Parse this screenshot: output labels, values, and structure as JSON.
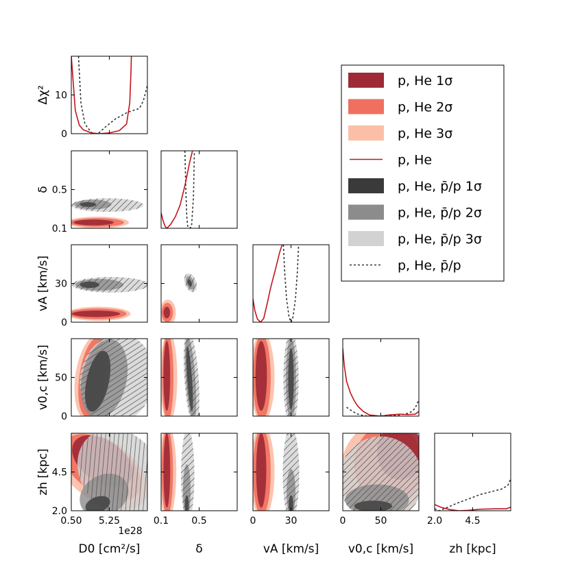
{
  "chart_data": {
    "type": "corner",
    "legend": {
      "placement": "top-right",
      "items": [
        {
          "label": "p, He 1σ",
          "color": "#9e2a36",
          "kind": "fill"
        },
        {
          "label": "p, He 2σ",
          "color": "#f07060",
          "kind": "fill"
        },
        {
          "label": "p, He 3σ",
          "color": "#fbbfa8",
          "kind": "fill"
        },
        {
          "label": "p, He",
          "color": "#c0141c",
          "kind": "line"
        },
        {
          "label": "p, He, p̄/p 1σ",
          "color": "#3a3a3a",
          "kind": "fill"
        },
        {
          "label": "p, He, p̄/p 2σ",
          "color": "#8c8c8c",
          "kind": "fill"
        },
        {
          "label": "p, He, p̄/p 3σ",
          "color": "#d2d2d2",
          "kind": "fill"
        },
        {
          "label": "p, He, p̄/p",
          "color": "#333333",
          "kind": "dashed"
        }
      ]
    },
    "colors": {
      "red_1s": "#9e2a36",
      "red_2s": "#f07060",
      "red_3s": "#fbbfa8",
      "gray_1s": "#3a3a3a",
      "gray_2s": "#8c8c8c",
      "gray_3s": "#d2d2d2",
      "red_line": "#c0141c",
      "gray_line": "#333333"
    },
    "parameters": [
      {
        "key": "D0",
        "label": "D0 [cm²/s]",
        "range": [
          0.5,
          10.0
        ],
        "ticks": [
          0.5,
          5.25
        ],
        "tick_labels": [
          "0.50",
          "5.25"
        ],
        "offset_text": "1e28"
      },
      {
        "key": "delta",
        "label": "δ",
        "range": [
          0.1,
          0.9
        ],
        "ticks": [
          0.1,
          0.5
        ],
        "tick_labels": [
          "0.1",
          "0.5"
        ]
      },
      {
        "key": "vA",
        "label": "vA [km/s]",
        "range": [
          0,
          60
        ],
        "ticks": [
          0,
          30
        ],
        "tick_labels": [
          "0",
          "30"
        ]
      },
      {
        "key": "v0c",
        "label": "v0,c [km/s]",
        "range": [
          0,
          100
        ],
        "ticks": [
          0,
          50
        ],
        "tick_labels": [
          "0",
          "50"
        ]
      },
      {
        "key": "zh",
        "label": "zh [kpc]",
        "range": [
          2.0,
          7.0
        ],
        "ticks": [
          2.0,
          4.5
        ],
        "tick_labels": [
          "2.0",
          "4.5"
        ]
      }
    ],
    "profile_ylabel": "Δχ²",
    "profile_yrange": [
      0,
      20
    ],
    "profile_yticks": [
      0,
      10
    ],
    "profiles": [
      {
        "param": "D0",
        "pHe": {
          "x": [
            0.5,
            1.0,
            1.5,
            2.0,
            3.0,
            4.0,
            5.25,
            6.5,
            7.4,
            7.8,
            7.95,
            8.0
          ],
          "y": [
            20,
            6,
            2.2,
            1.0,
            0.2,
            0.0,
            0.2,
            0.8,
            2.5,
            8,
            16,
            20
          ]
        },
        "pHePbar": {
          "x": [
            1.4,
            1.7,
            2.2,
            3.0,
            3.5,
            4.0,
            4.8,
            6.0,
            7.5,
            9.0,
            9.5,
            10.0
          ],
          "y": [
            20,
            8,
            2.5,
            0.3,
            0.0,
            0.3,
            1.8,
            3.8,
            5.5,
            6.5,
            8.5,
            12.5
          ]
        }
      },
      {
        "param": "delta",
        "pHe": {
          "x": [
            0.1,
            0.12,
            0.14,
            0.16,
            0.2,
            0.25,
            0.3,
            0.35,
            0.4,
            0.43
          ],
          "y": [
            4,
            2.0,
            0.6,
            0.0,
            1.0,
            3.0,
            6.0,
            11,
            17,
            20
          ]
        },
        "pHePbar": {
          "x": [
            0.35,
            0.36,
            0.37,
            0.38,
            0.4,
            0.42,
            0.44,
            0.45
          ],
          "y": [
            20,
            10,
            3,
            0.5,
            0.0,
            0.5,
            8,
            20
          ]
        }
      },
      {
        "param": "vA",
        "pHe": {
          "x": [
            0,
            1.5,
            3.5,
            6,
            8.5,
            11,
            14,
            18,
            21,
            23
          ],
          "y": [
            6,
            3,
            0.8,
            0.0,
            1.0,
            4.5,
            9,
            14,
            18,
            20
          ]
        },
        "pHePbar": {
          "x": [
            24,
            25,
            26.5,
            28.5,
            30,
            31.5,
            33.5,
            35,
            36
          ],
          "y": [
            20,
            13,
            6,
            1.2,
            0.0,
            1.2,
            6,
            13,
            20
          ]
        }
      },
      {
        "param": "v0c",
        "pHe": {
          "x": [
            0,
            2,
            5,
            10,
            15,
            20,
            27,
            35,
            50,
            60,
            75,
            85,
            95,
            100
          ],
          "y": [
            17.5,
            13,
            9,
            6,
            4,
            2.5,
            1.2,
            0.3,
            0.0,
            0.3,
            0.5,
            0.4,
            0.5,
            1.2
          ]
        },
        "pHePbar": {
          "x": [
            5,
            10,
            15,
            20,
            27,
            35,
            50,
            65,
            75,
            85,
            90,
            95,
            100
          ],
          "y": [
            2.3,
            1.6,
            1.0,
            0.5,
            0.15,
            0.0,
            0.05,
            0.1,
            0.3,
            0.7,
            1.1,
            2.0,
            4.2
          ]
        }
      },
      {
        "param": "zh",
        "pHe": {
          "x": [
            2.0,
            2.4,
            3.0,
            3.6,
            4.2,
            5.0,
            6.0,
            6.7,
            7.0
          ],
          "y": [
            1.6,
            0.9,
            0.3,
            0.0,
            0.1,
            0.4,
            0.5,
            0.5,
            0.9
          ]
        },
        "pHePbar": {
          "x": [
            2.0,
            2.3,
            2.8,
            3.5,
            4.2,
            5.0,
            5.8,
            6.4,
            6.8,
            7.0
          ],
          "y": [
            0.5,
            0.0,
            0.8,
            2.0,
            3.0,
            4.2,
            5.0,
            5.6,
            6.5,
            8.2
          ]
        }
      }
    ],
    "contours": [
      {
        "x": "D0",
        "y": "delta",
        "red": [
          {
            "cx": 3.8,
            "cy": 0.16,
            "rx": 3.9,
            "ry": 0.06,
            "rot": 0
          },
          {
            "cx": 3.7,
            "cy": 0.16,
            "rx": 3.4,
            "ry": 0.045,
            "rot": 0
          },
          {
            "cx": 3.3,
            "cy": 0.16,
            "rx": 2.5,
            "ry": 0.03,
            "rot": 0
          }
        ],
        "gray": [
          {
            "cx": 5.0,
            "cy": 0.34,
            "rx": 4.5,
            "ry": 0.07,
            "rot": 0
          },
          {
            "cx": 3.2,
            "cy": 0.345,
            "rx": 2.3,
            "ry": 0.05,
            "rot": 0
          },
          {
            "cx": 2.6,
            "cy": 0.345,
            "rx": 1.0,
            "ry": 0.025,
            "rot": 0
          }
        ]
      },
      {
        "x": "D0",
        "y": "vA",
        "red": [
          {
            "cx": 3.9,
            "cy": 6.5,
            "rx": 4.0,
            "ry": 5.5,
            "rot": 0
          },
          {
            "cx": 3.8,
            "cy": 6.5,
            "rx": 3.6,
            "ry": 4.2,
            "rot": 0
          },
          {
            "cx": 3.6,
            "cy": 6.5,
            "rx": 3.0,
            "ry": 2.5,
            "rot": 0
          }
        ],
        "gray": [
          {
            "cx": 5.4,
            "cy": 29,
            "rx": 4.8,
            "ry": 6.0,
            "rot": 0
          },
          {
            "cx": 4.0,
            "cy": 29,
            "rx": 3.0,
            "ry": 4.5,
            "rot": 0
          },
          {
            "cx": 2.8,
            "cy": 29,
            "rx": 1.2,
            "ry": 2.5,
            "rot": 0
          }
        ]
      },
      {
        "x": "delta",
        "y": "vA",
        "red": [
          {
            "cx": 0.17,
            "cy": 7.5,
            "rx": 0.085,
            "ry": 10,
            "rot": 0
          },
          {
            "cx": 0.165,
            "cy": 7.5,
            "rx": 0.06,
            "ry": 7.5,
            "rot": 0
          },
          {
            "cx": 0.16,
            "cy": 7.5,
            "rx": 0.035,
            "ry": 4.5,
            "rot": 0
          }
        ],
        "gray": [
          {
            "cx": 0.41,
            "cy": 30.5,
            "rx": 0.06,
            "ry": 7.5,
            "rot": -20
          },
          {
            "cx": 0.405,
            "cy": 30.5,
            "rx": 0.04,
            "ry": 5.5,
            "rot": -20
          },
          {
            "cx": 0.4,
            "cy": 30.5,
            "rx": 0.02,
            "ry": 3.0,
            "rot": -20
          }
        ]
      },
      {
        "x": "D0",
        "y": "v0c",
        "red": [
          {
            "cx": 3.2,
            "cy": 50,
            "rx": 2.2,
            "ry": 56,
            "rot": 8
          },
          {
            "cx": 3.2,
            "cy": 50,
            "rx": 1.7,
            "ry": 52,
            "rot": 8
          },
          {
            "cx": 3.4,
            "cy": 45,
            "rx": 1.2,
            "ry": 40,
            "rot": 8
          }
        ],
        "gray": [
          {
            "cx": 6.2,
            "cy": 48,
            "rx": 4.6,
            "ry": 58,
            "rot": 12
          },
          {
            "cx": 4.6,
            "cy": 48,
            "rx": 2.8,
            "ry": 52,
            "rot": 12
          },
          {
            "cx": 3.8,
            "cy": 45,
            "rx": 1.4,
            "ry": 40,
            "rot": 12
          }
        ]
      },
      {
        "x": "delta",
        "y": "v0c",
        "red": [
          {
            "cx": 0.18,
            "cy": 50,
            "rx": 0.09,
            "ry": 58,
            "rot": 0
          },
          {
            "cx": 0.17,
            "cy": 50,
            "rx": 0.06,
            "ry": 55,
            "rot": 0
          },
          {
            "cx": 0.16,
            "cy": 52,
            "rx": 0.035,
            "ry": 45,
            "rot": 0
          }
        ],
        "gray": [
          {
            "cx": 0.42,
            "cy": 48,
            "rx": 0.075,
            "ry": 62,
            "rot": -4
          },
          {
            "cx": 0.41,
            "cy": 48,
            "rx": 0.05,
            "ry": 55,
            "rot": -4
          },
          {
            "cx": 0.4,
            "cy": 48,
            "rx": 0.025,
            "ry": 42,
            "rot": -4
          }
        ]
      },
      {
        "x": "vA",
        "y": "v0c",
        "red": [
          {
            "cx": 7.5,
            "cy": 50,
            "rx": 9.5,
            "ry": 58,
            "rot": 0
          },
          {
            "cx": 7.0,
            "cy": 50,
            "rx": 7.0,
            "ry": 55,
            "rot": 0
          },
          {
            "cx": 6.5,
            "cy": 52,
            "rx": 4.5,
            "ry": 45,
            "rot": 0
          }
        ],
        "gray": [
          {
            "cx": 30,
            "cy": 48,
            "rx": 6.0,
            "ry": 60,
            "rot": 0
          },
          {
            "cx": 30,
            "cy": 48,
            "rx": 4.0,
            "ry": 53,
            "rot": 0
          },
          {
            "cx": 30,
            "cy": 48,
            "rx": 2.2,
            "ry": 40,
            "rot": 0
          }
        ]
      },
      {
        "x": "D0",
        "y": "zh",
        "red": [
          {
            "cx": 4.3,
            "cy": 4.6,
            "rx": 3.8,
            "ry": 3.4,
            "rot": -55
          },
          {
            "cx": 4.3,
            "cy": 4.8,
            "rx": 3.2,
            "ry": 2.9,
            "rot": -55
          },
          {
            "cx": 4.4,
            "cy": 5.2,
            "rx": 2.6,
            "ry": 2.2,
            "rot": -55
          }
        ],
        "gray": [
          {
            "cx": 6.5,
            "cy": 4.5,
            "rx": 4.8,
            "ry": 3.0,
            "rot": -40
          },
          {
            "cx": 4.6,
            "cy": 3.0,
            "rx": 3.2,
            "ry": 1.3,
            "rot": -30
          },
          {
            "cx": 3.8,
            "cy": 2.4,
            "rx": 1.6,
            "ry": 0.5,
            "rot": -20
          }
        ]
      },
      {
        "x": "delta",
        "y": "zh",
        "red": [
          {
            "cx": 0.17,
            "cy": 4.5,
            "rx": 0.09,
            "ry": 3.0,
            "rot": 0
          },
          {
            "cx": 0.165,
            "cy": 4.5,
            "rx": 0.06,
            "ry": 2.8,
            "rot": 0
          },
          {
            "cx": 0.16,
            "cy": 4.6,
            "rx": 0.035,
            "ry": 2.4,
            "rot": 0
          }
        ],
        "gray": [
          {
            "cx": 0.38,
            "cy": 4.3,
            "rx": 0.07,
            "ry": 3.0,
            "rot": 0
          },
          {
            "cx": 0.37,
            "cy": 3.3,
            "rx": 0.04,
            "ry": 1.7,
            "rot": 0
          },
          {
            "cx": 0.37,
            "cy": 2.4,
            "rx": 0.02,
            "ry": 0.6,
            "rot": 0
          }
        ]
      },
      {
        "x": "vA",
        "y": "zh",
        "red": [
          {
            "cx": 7.5,
            "cy": 4.5,
            "rx": 9.5,
            "ry": 3.0,
            "rot": 0
          },
          {
            "cx": 7.0,
            "cy": 4.5,
            "rx": 7.0,
            "ry": 2.8,
            "rot": 0
          },
          {
            "cx": 6.5,
            "cy": 4.6,
            "rx": 4.0,
            "ry": 2.4,
            "rot": 0
          }
        ],
        "gray": [
          {
            "cx": 30,
            "cy": 4.4,
            "rx": 6.5,
            "ry": 3.0,
            "rot": 0
          },
          {
            "cx": 30,
            "cy": 3.2,
            "rx": 3.5,
            "ry": 1.5,
            "rot": 0
          },
          {
            "cx": 30,
            "cy": 2.4,
            "rx": 1.8,
            "ry": 0.6,
            "rot": 0
          }
        ]
      },
      {
        "x": "v0c",
        "y": "zh",
        "red": [
          {
            "cx": 52,
            "cy": 4.5,
            "rx": 55,
            "ry": 3.2,
            "rot": 0
          },
          {
            "cx": 60,
            "cy": 5.0,
            "rx": 45,
            "ry": 2.6,
            "rot": 0
          },
          {
            "cx": 75,
            "cy": 5.8,
            "rx": 30,
            "ry": 1.8,
            "rot": 0
          }
        ],
        "gray": [
          {
            "cx": 50,
            "cy": 4.0,
            "rx": 55,
            "ry": 2.8,
            "rot": 0
          },
          {
            "cx": 45,
            "cy": 2.7,
            "rx": 42,
            "ry": 1.0,
            "rot": 0
          },
          {
            "cx": 40,
            "cy": 2.3,
            "rx": 25,
            "ry": 0.35,
            "rot": 0
          }
        ]
      }
    ]
  }
}
